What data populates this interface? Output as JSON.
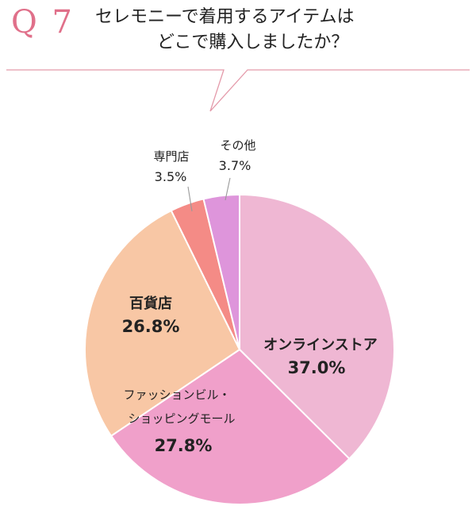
{
  "header": {
    "q_number": "Q 7",
    "question_line1": "セレモニーで着用するアイテムは",
    "question_line2": "どこで購入しましたか？"
  },
  "colors": {
    "accent": "#e0708a",
    "rule": "#e49aaa",
    "leader": "#999999"
  },
  "chart_data": {
    "type": "pie",
    "title": "",
    "unit": "%",
    "start_angle_deg": 0,
    "direction": "clockwise",
    "slices": [
      {
        "label": "オンラインストア",
        "value": 37.0,
        "display": "37.0%",
        "color": "#efb7d3"
      },
      {
        "label": "ファッションビル・ショッピングモール",
        "label_lines": [
          "ファッションビル・",
          "ショッピングモール"
        ],
        "value": 27.8,
        "display": "27.8%",
        "color": "#f0a0ca"
      },
      {
        "label": "百貨店",
        "value": 26.8,
        "display": "26.8%",
        "color": "#f8c7a5"
      },
      {
        "label": "専門店",
        "value": 3.5,
        "display": "3.5%",
        "color": "#f48b86"
      },
      {
        "label": "その他",
        "value": 3.7,
        "display": "3.7%",
        "color": "#de95db"
      }
    ]
  }
}
